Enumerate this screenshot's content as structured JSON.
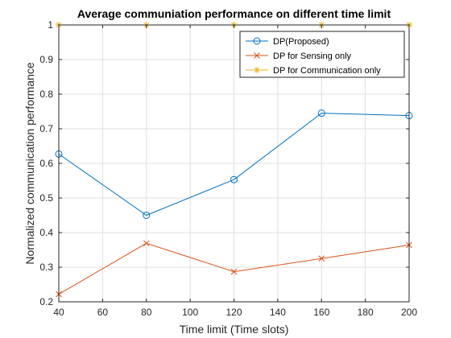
{
  "chart_data": {
    "type": "line",
    "title": "Average communiation performance on different time limit",
    "xlabel": "Time limit (Time slots)",
    "ylabel": "Normalized communication performance",
    "x": [
      40,
      80,
      120,
      160,
      200
    ],
    "xlim": [
      40,
      200
    ],
    "ylim": [
      0.2,
      1.0
    ],
    "xticks": [
      40,
      60,
      80,
      100,
      120,
      140,
      160,
      180,
      200
    ],
    "yticks": [
      0.2,
      0.3,
      0.4,
      0.5,
      0.6,
      0.7,
      0.8,
      0.9,
      1
    ],
    "ytick_labels": [
      "0.2",
      "0.3",
      "0.4",
      "0.5",
      "0.6",
      "0.7",
      "0.8",
      "0.9",
      "1"
    ],
    "grid": true,
    "legend_position": "top-right",
    "series": [
      {
        "name": "DP(Proposed)",
        "values": [
          0.627,
          0.45,
          0.553,
          0.745,
          0.738
        ],
        "color": "#0072BD",
        "marker": "circle"
      },
      {
        "name": "DP for Sensing only",
        "values": [
          0.222,
          0.369,
          0.287,
          0.325,
          0.364
        ],
        "color": "#D95319",
        "marker": "x"
      },
      {
        "name": "DP for Communication only",
        "values": [
          1.0,
          1.0,
          1.0,
          1.0,
          1.0
        ],
        "color": "#EDB120",
        "marker": "star"
      }
    ]
  }
}
